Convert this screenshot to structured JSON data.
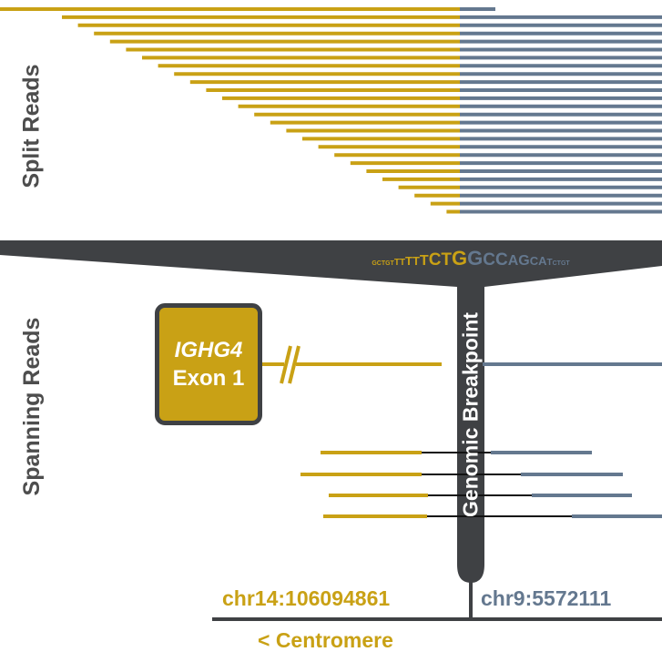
{
  "labels": {
    "split_reads": "Split Reads",
    "spanning_reads": "Spanning Reads",
    "breakpoint": "Genomic Breakpoint",
    "centromere": "< Centromere"
  },
  "exon": {
    "gene": "IGHG4",
    "name": "Exon 1"
  },
  "coordinates": {
    "left": "chr14:106094861",
    "right": "chr9:5572111"
  },
  "sequence": [
    {
      "text": "GCTGT",
      "side": "left",
      "size": 1
    },
    {
      "text": "TT",
      "side": "left",
      "size": 2
    },
    {
      "text": "TT",
      "side": "left",
      "size": 3
    },
    {
      "text": "T",
      "side": "left",
      "size": 4
    },
    {
      "text": "CT",
      "side": "left",
      "size": 5
    },
    {
      "text": "G",
      "side": "left",
      "size": 6
    },
    {
      "text": "G",
      "side": "right",
      "size": 6
    },
    {
      "text": "CC",
      "side": "right",
      "size": 5
    },
    {
      "text": "AG",
      "side": "right",
      "size": 4
    },
    {
      "text": "CA",
      "side": "right",
      "size": 3
    },
    {
      "text": "T",
      "side": "right",
      "size": 2
    },
    {
      "text": "CTGT",
      "side": "right",
      "size": 1
    }
  ],
  "colors": {
    "chr14": "#c9a115",
    "chr9": "#64788f",
    "dark": "#3f4144",
    "connector": "#111111"
  }
}
